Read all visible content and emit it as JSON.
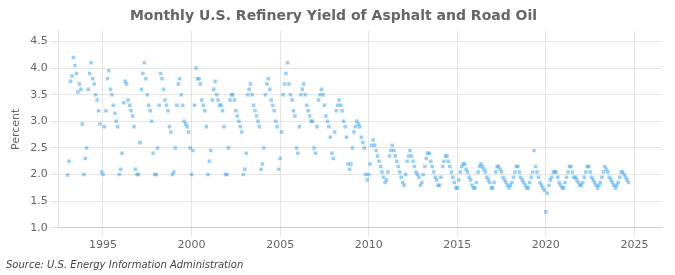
{
  "chart_data": {
    "type": "scatter",
    "title": "Monthly U.S. Refinery Yield of Asphalt and Road Oil",
    "ylabel": "Percent",
    "annotations": [
      "Source: U.S. Energy Information Administration"
    ],
    "marker": "square",
    "grid": true,
    "xlim": [
      1992.5,
      2026.5
    ],
    "ylim": [
      1.0,
      4.7
    ],
    "xticks": [
      1995,
      2000,
      2005,
      2010,
      2015,
      2020,
      2025
    ],
    "yticks": [
      {
        "value": 1.0,
        "label": "1.0"
      },
      {
        "value": 1.5,
        "label": "1.5"
      },
      {
        "value": 2.0,
        "label": "2.0"
      },
      {
        "value": 2.5,
        "label": "2.5"
      },
      {
        "value": 3.0,
        "label": "3.0"
      },
      {
        "value": 3.5,
        "label": "3.5"
      },
      {
        "value": 4.0,
        "label": "4.0"
      },
      {
        "value": 4.5,
        "label": "4.5"
      }
    ],
    "x": [
      1993.0,
      1993.08,
      1993.17,
      1993.25,
      1993.33,
      1993.42,
      1993.5,
      1993.58,
      1993.67,
      1993.75,
      1993.83,
      1993.92,
      1994.0,
      1994.08,
      1994.17,
      1994.25,
      1994.33,
      1994.42,
      1994.5,
      1994.58,
      1994.67,
      1994.75,
      1994.83,
      1994.92,
      1995.0,
      1995.08,
      1995.17,
      1995.25,
      1995.33,
      1995.42,
      1995.5,
      1995.58,
      1995.67,
      1995.75,
      1995.83,
      1995.92,
      1996.0,
      1996.08,
      1996.17,
      1996.25,
      1996.33,
      1996.42,
      1996.5,
      1996.58,
      1996.67,
      1996.75,
      1996.83,
      1996.92,
      1997.0,
      1997.08,
      1997.17,
      1997.25,
      1997.33,
      1997.42,
      1997.5,
      1997.58,
      1997.67,
      1997.75,
      1997.83,
      1997.92,
      1998.0,
      1998.08,
      1998.17,
      1998.25,
      1998.33,
      1998.42,
      1998.5,
      1998.58,
      1998.67,
      1998.75,
      1998.83,
      1998.92,
      1999.0,
      1999.08,
      1999.17,
      1999.25,
      1999.33,
      1999.42,
      1999.5,
      1999.58,
      1999.67,
      1999.75,
      1999.83,
      1999.92,
      2000.0,
      2000.08,
      2000.17,
      2000.25,
      2000.33,
      2000.42,
      2000.5,
      2000.58,
      2000.67,
      2000.75,
      2000.83,
      2000.92,
      2001.0,
      2001.08,
      2001.17,
      2001.25,
      2001.33,
      2001.42,
      2001.5,
      2001.58,
      2001.67,
      2001.75,
      2001.83,
      2001.92,
      2002.0,
      2002.08,
      2002.17,
      2002.25,
      2002.33,
      2002.42,
      2002.5,
      2002.58,
      2002.67,
      2002.75,
      2002.83,
      2002.92,
      2003.0,
      2003.08,
      2003.17,
      2003.25,
      2003.33,
      2003.42,
      2003.5,
      2003.58,
      2003.67,
      2003.75,
      2003.83,
      2003.92,
      2004.0,
      2004.08,
      2004.17,
      2004.25,
      2004.33,
      2004.42,
      2004.5,
      2004.58,
      2004.67,
      2004.75,
      2004.83,
      2004.92,
      2005.0,
      2005.08,
      2005.17,
      2005.25,
      2005.33,
      2005.42,
      2005.5,
      2005.58,
      2005.67,
      2005.75,
      2005.83,
      2005.92,
      2006.0,
      2006.08,
      2006.17,
      2006.25,
      2006.33,
      2006.42,
      2006.5,
      2006.58,
      2006.67,
      2006.75,
      2006.83,
      2006.92,
      2007.0,
      2007.08,
      2007.17,
      2007.25,
      2007.33,
      2007.42,
      2007.5,
      2007.58,
      2007.67,
      2007.75,
      2007.83,
      2007.92,
      2008.0,
      2008.08,
      2008.17,
      2008.25,
      2008.33,
      2008.42,
      2008.5,
      2008.58,
      2008.67,
      2008.75,
      2008.83,
      2008.92,
      2009.0,
      2009.08,
      2009.17,
      2009.25,
      2009.33,
      2009.42,
      2009.5,
      2009.58,
      2009.67,
      2009.75,
      2009.83,
      2009.92,
      2010.0,
      2010.08,
      2010.17,
      2010.25,
      2010.33,
      2010.42,
      2010.5,
      2010.58,
      2010.67,
      2010.75,
      2010.83,
      2010.92,
      2011.0,
      2011.08,
      2011.17,
      2011.25,
      2011.33,
      2011.42,
      2011.5,
      2011.58,
      2011.67,
      2011.75,
      2011.83,
      2011.92,
      2012.0,
      2012.08,
      2012.17,
      2012.25,
      2012.33,
      2012.42,
      2012.5,
      2012.58,
      2012.67,
      2012.75,
      2012.83,
      2012.92,
      2013.0,
      2013.08,
      2013.17,
      2013.25,
      2013.33,
      2013.42,
      2013.5,
      2013.58,
      2013.67,
      2013.75,
      2013.83,
      2013.92,
      2014.0,
      2014.08,
      2014.17,
      2014.25,
      2014.33,
      2014.42,
      2014.5,
      2014.58,
      2014.67,
      2014.75,
      2014.83,
      2014.92,
      2015.0,
      2015.08,
      2015.17,
      2015.25,
      2015.33,
      2015.42,
      2015.5,
      2015.58,
      2015.67,
      2015.75,
      2015.83,
      2015.92,
      2016.0,
      2016.08,
      2016.17,
      2016.25,
      2016.33,
      2016.42,
      2016.5,
      2016.58,
      2016.67,
      2016.75,
      2016.83,
      2016.92,
      2017.0,
      2017.08,
      2017.17,
      2017.25,
      2017.33,
      2017.42,
      2017.5,
      2017.58,
      2017.67,
      2017.75,
      2017.83,
      2017.92,
      2018.0,
      2018.08,
      2018.17,
      2018.25,
      2018.33,
      2018.42,
      2018.5,
      2018.58,
      2018.67,
      2018.75,
      2018.83,
      2018.92,
      2019.0,
      2019.08,
      2019.17,
      2019.25,
      2019.33,
      2019.42,
      2019.5,
      2019.58,
      2019.67,
      2019.75,
      2019.83,
      2019.92,
      2020.0,
      2020.08,
      2020.17,
      2020.25,
      2020.33,
      2020.42,
      2020.5,
      2020.58,
      2020.67,
      2020.75,
      2020.83,
      2020.92,
      2021.0,
      2021.08,
      2021.17,
      2021.25,
      2021.33,
      2021.42,
      2021.5,
      2021.58,
      2021.67,
      2021.75,
      2021.83,
      2021.92,
      2022.0,
      2022.08,
      2022.17,
      2022.25,
      2022.33,
      2022.42,
      2022.5,
      2022.58,
      2022.67,
      2022.75,
      2022.83,
      2022.92,
      2023.0,
      2023.08,
      2023.17,
      2023.25,
      2023.33,
      2023.42,
      2023.5,
      2023.58,
      2023.67,
      2023.75,
      2023.83,
      2023.92,
      2024.0,
      2024.08,
      2024.17,
      2024.25,
      2024.33,
      2024.42,
      2024.5,
      2024.58,
      2024.67
    ],
    "values": [
      1.99,
      2.25,
      3.75,
      3.85,
      4.2,
      4.05,
      3.9,
      3.55,
      3.7,
      3.6,
      2.95,
      2.0,
      2.3,
      2.5,
      3.6,
      3.9,
      4.1,
      3.8,
      3.7,
      3.5,
      3.4,
      3.2,
      2.95,
      2.05,
      2.0,
      2.9,
      3.2,
      3.8,
      3.95,
      3.6,
      3.5,
      3.3,
      3.15,
      3.0,
      2.9,
      2.0,
      2.1,
      2.4,
      3.35,
      3.75,
      3.7,
      3.4,
      3.3,
      3.2,
      3.1,
      2.9,
      2.1,
      2.0,
      2.0,
      2.6,
      3.6,
      3.9,
      4.1,
      3.8,
      3.5,
      3.3,
      3.2,
      3.0,
      2.4,
      2.0,
      2.0,
      2.5,
      3.3,
      3.9,
      3.8,
      3.6,
      3.4,
      3.3,
      3.2,
      2.9,
      2.8,
      2.0,
      2.05,
      2.5,
      3.3,
      3.7,
      3.8,
      3.5,
      3.3,
      3.0,
      2.95,
      2.9,
      2.8,
      2.5,
      2.0,
      2.45,
      3.3,
      4.0,
      3.8,
      3.8,
      3.7,
      3.4,
      3.3,
      3.2,
      2.9,
      2.0,
      2.25,
      2.45,
      3.4,
      3.6,
      3.75,
      3.5,
      3.4,
      3.3,
      3.3,
      3.2,
      2.9,
      2.0,
      2.0,
      2.5,
      3.4,
      3.5,
      3.5,
      3.4,
      3.2,
      3.1,
      3.0,
      2.9,
      2.8,
      2.0,
      2.1,
      2.4,
      3.5,
      3.6,
      3.7,
      3.5,
      3.3,
      3.2,
      3.1,
      3.0,
      2.9,
      2.1,
      2.2,
      2.5,
      3.5,
      3.7,
      3.8,
      3.6,
      3.4,
      3.3,
      3.2,
      3.0,
      2.9,
      2.1,
      2.3,
      2.8,
      3.5,
      3.7,
      3.9,
      4.1,
      3.7,
      3.5,
      3.4,
      3.2,
      3.1,
      2.5,
      2.4,
      2.9,
      3.5,
      3.6,
      3.7,
      3.5,
      3.3,
      3.2,
      3.1,
      3.0,
      3.0,
      2.5,
      2.4,
      2.9,
      3.4,
      3.5,
      3.6,
      3.5,
      3.3,
      3.1,
      3.0,
      2.9,
      2.7,
      2.4,
      2.3,
      2.8,
      3.2,
      3.3,
      3.4,
      3.3,
      3.2,
      3.0,
      2.9,
      2.7,
      2.2,
      2.1,
      2.2,
      2.5,
      2.8,
      2.9,
      3.0,
      2.95,
      2.9,
      2.7,
      2.6,
      2.5,
      2.0,
      1.9,
      2.0,
      2.2,
      2.55,
      2.65,
      2.55,
      2.45,
      2.35,
      2.25,
      2.15,
      2.05,
      1.95,
      1.85,
      1.9,
      2.05,
      2.35,
      2.45,
      2.55,
      2.45,
      2.35,
      2.25,
      2.15,
      2.05,
      1.95,
      1.85,
      1.8,
      2.0,
      2.25,
      2.35,
      2.45,
      2.35,
      2.25,
      2.15,
      2.05,
      2.0,
      1.95,
      1.8,
      1.85,
      2.0,
      2.15,
      2.3,
      2.4,
      2.4,
      2.25,
      2.15,
      2.05,
      1.95,
      1.9,
      1.8,
      1.8,
      1.95,
      2.15,
      2.25,
      2.35,
      2.35,
      2.25,
      2.15,
      2.05,
      1.95,
      1.85,
      1.75,
      1.75,
      1.9,
      2.05,
      2.15,
      2.2,
      2.2,
      2.1,
      2.05,
      1.95,
      1.9,
      1.8,
      1.75,
      1.75,
      1.85,
      2.05,
      2.15,
      2.2,
      2.15,
      2.1,
      2.05,
      1.95,
      1.9,
      1.85,
      1.75,
      1.75,
      1.85,
      2.05,
      2.15,
      2.15,
      2.1,
      2.05,
      1.95,
      1.9,
      1.85,
      1.8,
      1.75,
      1.8,
      1.85,
      1.95,
      2.05,
      2.15,
      2.15,
      2.05,
      1.95,
      1.9,
      1.85,
      1.8,
      1.75,
      1.75,
      1.85,
      1.95,
      2.05,
      2.45,
      2.15,
      2.05,
      1.95,
      1.85,
      1.8,
      1.75,
      1.7,
      1.3,
      1.65,
      1.8,
      1.9,
      1.95,
      2.05,
      2.05,
      2.05,
      1.95,
      1.85,
      1.8,
      1.75,
      1.75,
      1.85,
      1.95,
      2.05,
      2.15,
      2.15,
      2.05,
      1.95,
      1.95,
      1.9,
      1.85,
      1.8,
      1.8,
      1.85,
      1.95,
      2.05,
      2.15,
      2.15,
      2.05,
      1.95,
      1.9,
      1.85,
      1.8,
      1.75,
      1.8,
      1.85,
      1.95,
      2.05,
      2.15,
      2.1,
      2.05,
      1.95,
      1.9,
      1.85,
      1.8,
      1.75,
      1.8,
      1.85,
      1.95,
      2.05,
      2.05,
      2.0,
      1.95,
      1.9,
      1.85
    ]
  }
}
